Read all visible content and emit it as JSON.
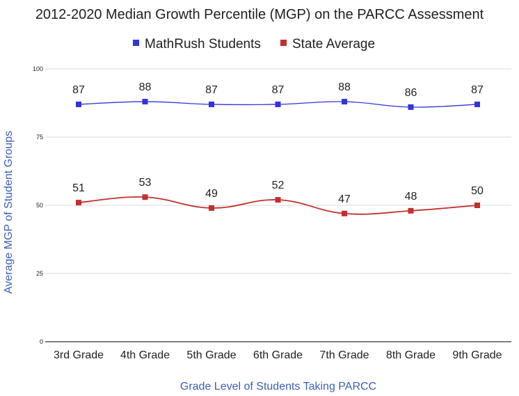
{
  "chart_data": {
    "type": "line",
    "title": "2012-2020 Median Growth Percentile (MGP) on the PARCC Assessment",
    "xlabel": "Grade Level of Students Taking PARCC",
    "ylabel": "Average MGP of Student Groups",
    "categories": [
      "3rd Grade",
      "4th Grade",
      "5th Grade",
      "6th Grade",
      "7th Grade",
      "8th Grade",
      "9th Grade"
    ],
    "yticks": [
      "0",
      "25",
      "50",
      "75",
      "100"
    ],
    "ylim": [
      0,
      100
    ],
    "grid": true,
    "legend_position": "top",
    "series": [
      {
        "name": "MathRush Students",
        "color": "#3333dd",
        "values": [
          87,
          88,
          87,
          87,
          88,
          86,
          87
        ],
        "labels": [
          "87",
          "88",
          "87",
          "87",
          "88",
          "86",
          "87"
        ]
      },
      {
        "name": "State Average",
        "color": "#c0302c",
        "values": [
          51,
          53,
          49,
          52,
          47,
          48,
          50
        ],
        "labels": [
          "51",
          "53",
          "49",
          "52",
          "47",
          "48",
          "50"
        ]
      }
    ]
  }
}
